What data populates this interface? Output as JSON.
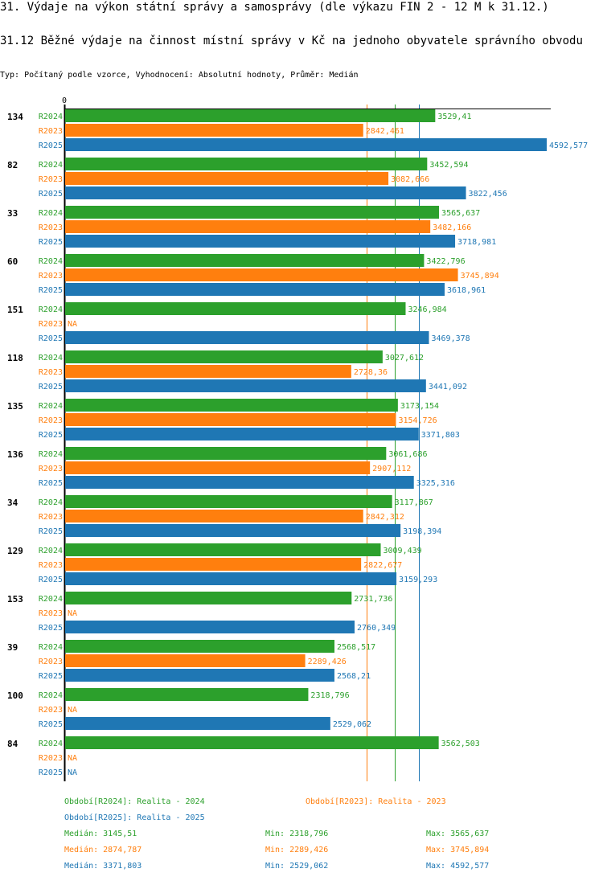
{
  "header": {
    "title": "31. Výdaje na výkon státní správy a samosprávy (dle výkazu FIN 2 - 12 M k 31.12.)",
    "subtitle": "31.12 Běžné výdaje na činnost místní správy v Kč na jednoho obyvatele správního obvodu",
    "info": "Typ: Počítaný podle vzorce, Vyhodnocení: Absolutní hodnoty, Průměr: Medián"
  },
  "colors": {
    "R2024": "#2ca02c",
    "R2023": "#ff7f0e",
    "R2025": "#1f77b4"
  },
  "chart_data": {
    "type": "bar",
    "orientation": "horizontal",
    "title": "31.12 Běžné výdaje na činnost místní správy v Kč na jednoho obyvatele správního obvodu",
    "x_axis_tick_labels": [
      "0"
    ],
    "xlim": [
      0,
      4650
    ],
    "grid": false,
    "na_label": "NA",
    "categories": [
      "134",
      "82",
      "33",
      "60",
      "151",
      "118",
      "135",
      "136",
      "34",
      "129",
      "153",
      "39",
      "100",
      "84"
    ],
    "series": [
      {
        "name": "R2024",
        "values": [
          3529.41,
          3452.594,
          3565.637,
          3422.796,
          3246.984,
          3027.612,
          3173.154,
          3061.686,
          3117.867,
          3009.439,
          2731.736,
          2568.517,
          2318.796,
          3562.503
        ],
        "labels": [
          "3529,41",
          "3452,594",
          "3565,637",
          "3422,796",
          "3246,984",
          "3027,612",
          "3173,154",
          "3061,686",
          "3117,867",
          "3009,439",
          "2731,736",
          "2568,517",
          "2318,796",
          "3562,503"
        ]
      },
      {
        "name": "R2023",
        "values": [
          2842.461,
          3082.666,
          3482.166,
          3745.894,
          null,
          2728.36,
          3154.726,
          2907.112,
          2842.312,
          2822.677,
          null,
          2289.426,
          null,
          null
        ],
        "labels": [
          "2842,461",
          "3082,666",
          "3482,166",
          "3745,894",
          "NA",
          "2728,36",
          "3154,726",
          "2907,112",
          "2842,312",
          "2822,677",
          "NA",
          "2289,426",
          "NA",
          "NA"
        ]
      },
      {
        "name": "R2025",
        "values": [
          4592.577,
          3822.456,
          3718.981,
          3618.961,
          3469.378,
          3441.092,
          3371.803,
          3325.316,
          3198.394,
          3159.293,
          2760.349,
          2568.21,
          2529.062,
          null
        ],
        "labels": [
          "4592,577",
          "3822,456",
          "3718,981",
          "3618,961",
          "3469,378",
          "3441,092",
          "3371,803",
          "3325,316",
          "3198,394",
          "3159,293",
          "2760,349",
          "2568,21",
          "2529,062",
          "NA"
        ]
      }
    ],
    "median_lines": [
      {
        "series": "R2023",
        "value": 2874.787
      },
      {
        "series": "R2024",
        "value": 3145.51
      },
      {
        "series": "R2025",
        "value": 3371.803
      }
    ]
  },
  "legend": {
    "periods": [
      {
        "series": "R2024",
        "text": "Období[R2024]: Realita - 2024"
      },
      {
        "series": "R2023",
        "text": "Období[R2023]: Realita - 2023"
      },
      {
        "series": "R2025",
        "text": "Období[R2025]: Realita - 2025"
      }
    ],
    "stats": [
      {
        "series": "R2024",
        "median": "Medián: 3145,51",
        "min": "Min: 2318,796",
        "max": "Max: 3565,637"
      },
      {
        "series": "R2023",
        "median": "Medián: 2874,787",
        "min": "Min: 2289,426",
        "max": "Max: 3745,894"
      },
      {
        "series": "R2025",
        "median": "Medián: 3371,803",
        "min": "Min: 2529,062",
        "max": "Max: 4592,577"
      }
    ]
  }
}
